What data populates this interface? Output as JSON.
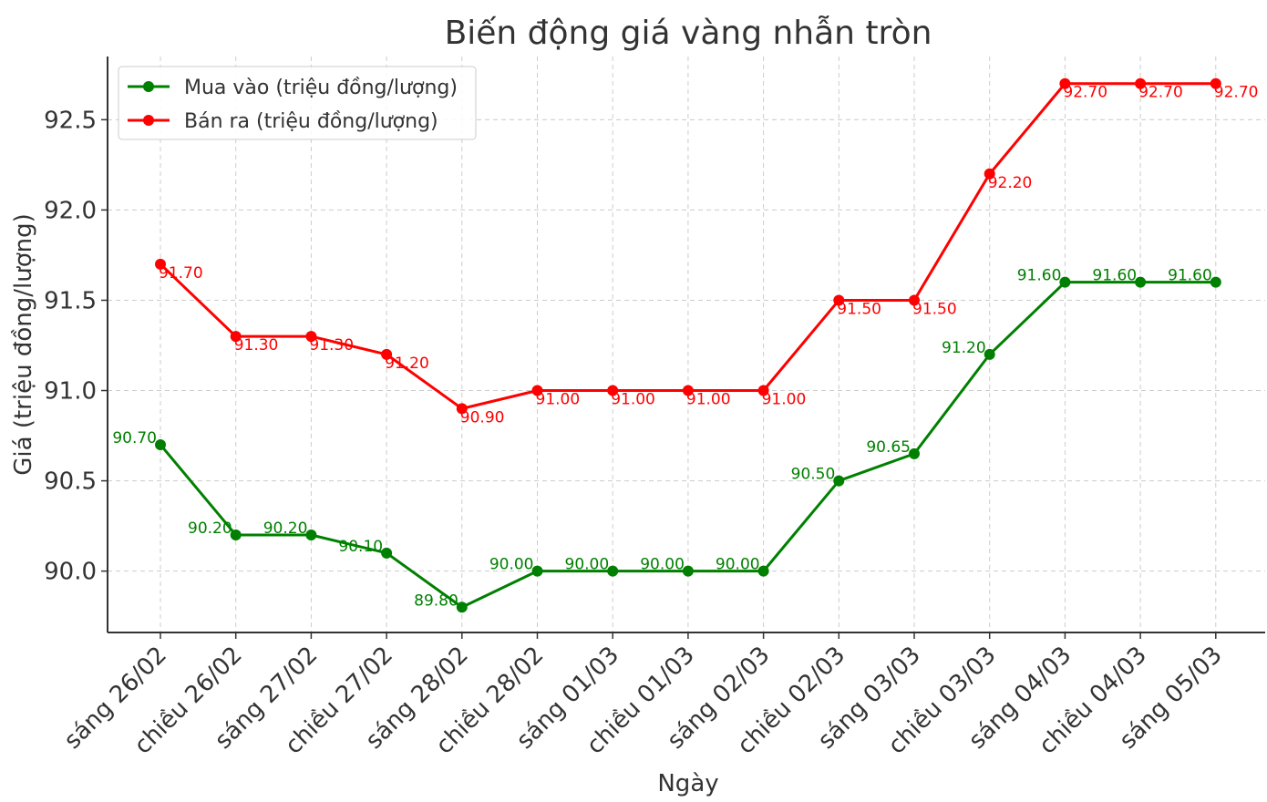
{
  "chart_data": {
    "type": "line",
    "title": "Biến động giá vàng nhẫn tròn",
    "xlabel": "Ngày",
    "ylabel": "Giá (triệu đồng/lượng)",
    "categories": [
      "sáng 26/02",
      "chiều 26/02",
      "sáng 27/02",
      "chiều 27/02",
      "sáng 28/02",
      "chiều 28/02",
      "sáng 01/03",
      "chiều 01/03",
      "sáng 02/03",
      "chiều 02/03",
      "sáng 03/03",
      "chiều 03/03",
      "sáng 04/03",
      "chiều 04/03",
      "sáng 05/03"
    ],
    "ylim": [
      89.66,
      92.85
    ],
    "yticks": [
      "90.0",
      "90.5",
      "91.0",
      "91.5",
      "92.0",
      "92.5"
    ],
    "grid": true,
    "legend_position": "top-left",
    "series": [
      {
        "name": "Mua vào (triệu đồng/lượng)",
        "color": "#008000",
        "values": [
          90.7,
          90.2,
          90.2,
          90.1,
          89.8,
          90.0,
          90.0,
          90.0,
          90.0,
          90.5,
          90.65,
          91.2,
          91.6,
          91.6,
          91.6
        ],
        "labels": [
          "90.70",
          "90.20",
          "90.20",
          "90.10",
          "89.80",
          "90.00",
          "90.00",
          "90.00",
          "90.00",
          "90.50",
          "90.65",
          "91.20",
          "91.60",
          "91.60",
          "91.60"
        ]
      },
      {
        "name": "Bán ra (triệu đồng/lượng)",
        "color": "#ff0000",
        "values": [
          91.7,
          91.3,
          91.3,
          91.2,
          90.9,
          91.0,
          91.0,
          91.0,
          91.0,
          91.5,
          91.5,
          92.2,
          92.7,
          92.7,
          92.7
        ],
        "labels": [
          "91.70",
          "91.30",
          "91.30",
          "91.20",
          "90.90",
          "91.00",
          "91.00",
          "91.00",
          "91.00",
          "91.50",
          "91.50",
          "92.20",
          "92.70",
          "92.70",
          "92.70"
        ]
      }
    ]
  }
}
